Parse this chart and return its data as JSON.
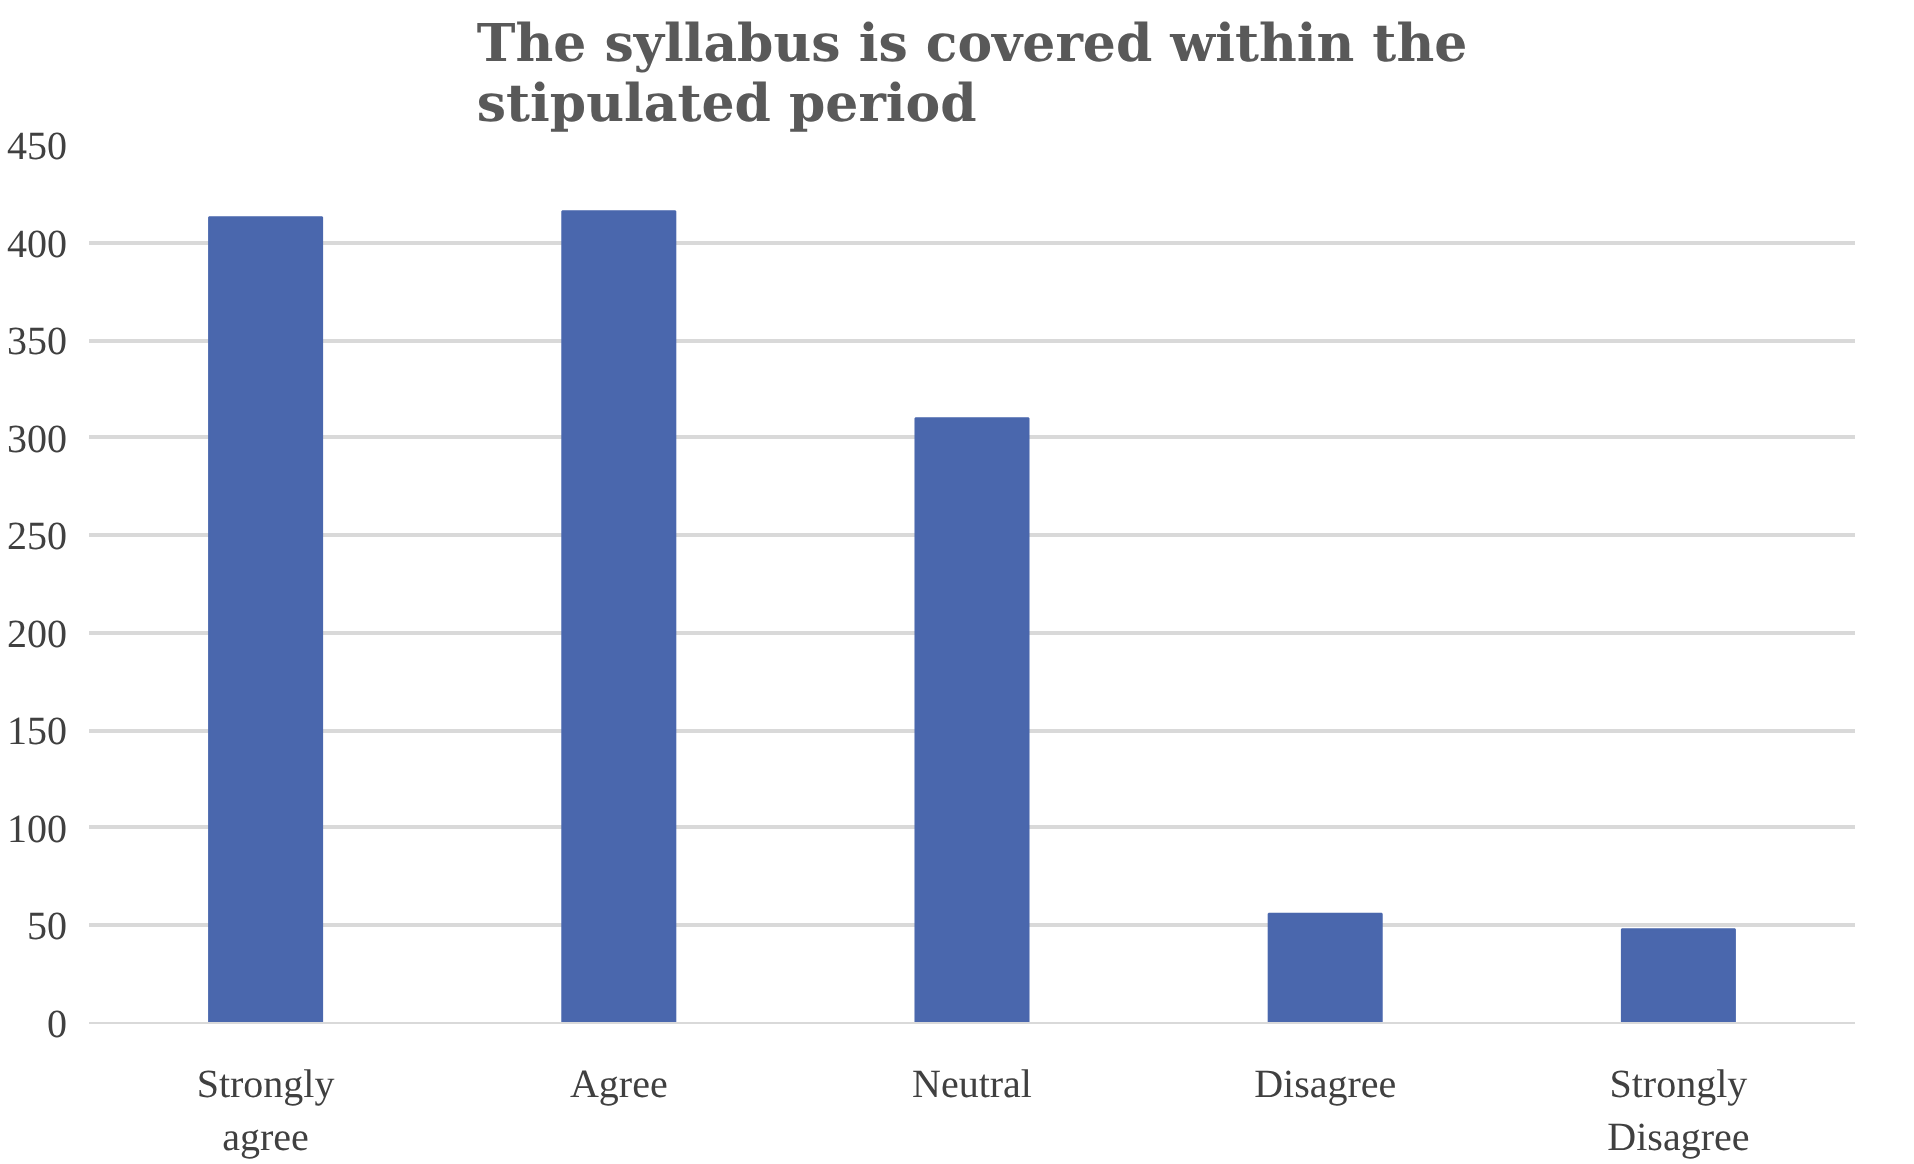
{
  "chart_data": {
    "type": "bar",
    "title": "The syllabus is covered within the stipulated period",
    "categories": [
      "Strongly agree",
      "Agree",
      "Neutral",
      "Disagree",
      "Strongly Disagree"
    ],
    "values": [
      413,
      416,
      310,
      56,
      48
    ],
    "color": "#4a67ad",
    "ylim": [
      0,
      450
    ],
    "yticks": [
      0,
      50,
      100,
      150,
      200,
      250,
      300,
      350,
      400,
      450
    ],
    "grid": "y"
  }
}
